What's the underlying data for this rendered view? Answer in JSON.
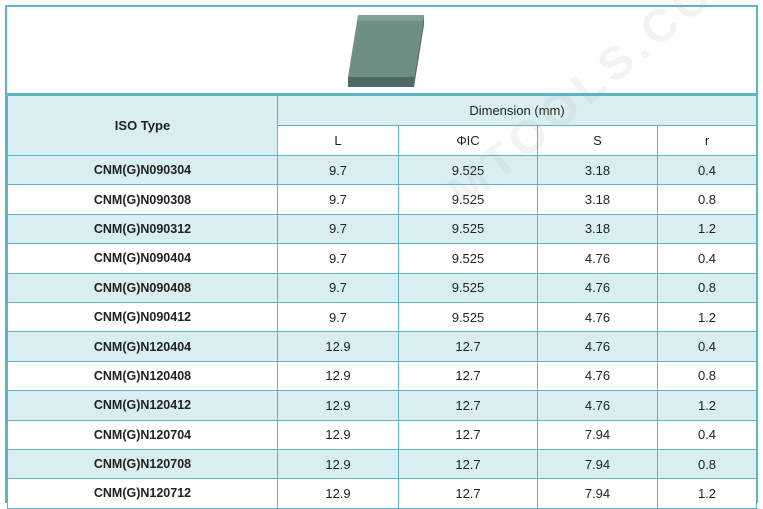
{
  "table": {
    "iso_header": "ISO Type",
    "dimension_header": "Dimension (mm)",
    "columns": [
      "L",
      "ΦIC",
      "S",
      "r"
    ],
    "rows": [
      {
        "iso": "CNM(G)N090304",
        "L": "9.7",
        "IC": "9.525",
        "S": "3.18",
        "r": "0.4"
      },
      {
        "iso": "CNM(G)N090308",
        "L": "9.7",
        "IC": "9.525",
        "S": "3.18",
        "r": "0.8"
      },
      {
        "iso": "CNM(G)N090312",
        "L": "9.7",
        "IC": "9.525",
        "S": "3.18",
        "r": "1.2"
      },
      {
        "iso": "CNM(G)N090404",
        "L": "9.7",
        "IC": "9.525",
        "S": "4.76",
        "r": "0.4"
      },
      {
        "iso": "CNM(G)N090408",
        "L": "9.7",
        "IC": "9.525",
        "S": "4.76",
        "r": "0.8"
      },
      {
        "iso": "CNM(G)N090412",
        "L": "9.7",
        "IC": "9.525",
        "S": "4.76",
        "r": "1.2"
      },
      {
        "iso": "CNM(G)N120404",
        "L": "12.9",
        "IC": "12.7",
        "S": "4.76",
        "r": "0.4"
      },
      {
        "iso": "CNM(G)N120408",
        "L": "12.9",
        "IC": "12.7",
        "S": "4.76",
        "r": "0.8"
      },
      {
        "iso": "CNM(G)N120412",
        "L": "12.9",
        "IC": "12.7",
        "S": "4.76",
        "r": "1.2"
      },
      {
        "iso": "CNM(G)N120704",
        "L": "12.9",
        "IC": "12.7",
        "S": "7.94",
        "r": "0.4"
      },
      {
        "iso": "CNM(G)N120708",
        "L": "12.9",
        "IC": "12.7",
        "S": "7.94",
        "r": "0.8"
      },
      {
        "iso": "CNM(G)N120712",
        "L": "12.9",
        "IC": "12.7",
        "S": "7.94",
        "r": "1.2"
      }
    ]
  },
  "watermark": "MTOOLS.COM",
  "colors": {
    "border": "#5fb3c4",
    "stripe": "#d9eef0",
    "insert": "#5e7a72"
  },
  "image": {
    "icon": "cnmg-insert-icon"
  }
}
